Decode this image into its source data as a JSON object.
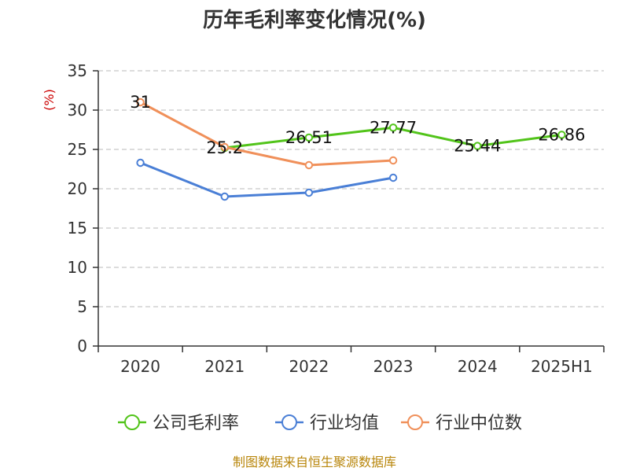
{
  "chart_data": {
    "type": "line",
    "title": "历年毛利率变化情况(%)",
    "ylabel": "(%)",
    "xlabel": "",
    "categories": [
      "2020",
      "2021",
      "2022",
      "2023",
      "2024",
      "2025H1"
    ],
    "ylim": [
      0,
      35
    ],
    "yticks": [
      0,
      5,
      10,
      15,
      20,
      25,
      30,
      35
    ],
    "grid": true,
    "legend_position": "bottom",
    "series": [
      {
        "name": "公司毛利率",
        "color": "#52c41a",
        "values": [
          null,
          25.2,
          26.51,
          27.77,
          25.44,
          26.86
        ],
        "labels": [
          "",
          "25.2",
          "26.51",
          "27.77",
          "25.44",
          "26.86"
        ]
      },
      {
        "name": "行业均值",
        "color": "#4a7fd6",
        "values": [
          23.3,
          19.0,
          19.5,
          21.4,
          null,
          null
        ],
        "labels": [
          "",
          "",
          "",
          "",
          "",
          ""
        ]
      },
      {
        "name": "行业中位数",
        "color": "#f0905a",
        "values": [
          31,
          25.3,
          23.0,
          23.6,
          null,
          null
        ],
        "labels": [
          "31",
          "",
          "",
          "",
          "",
          ""
        ]
      }
    ]
  },
  "source": "制图数据来自恒生聚源数据库"
}
